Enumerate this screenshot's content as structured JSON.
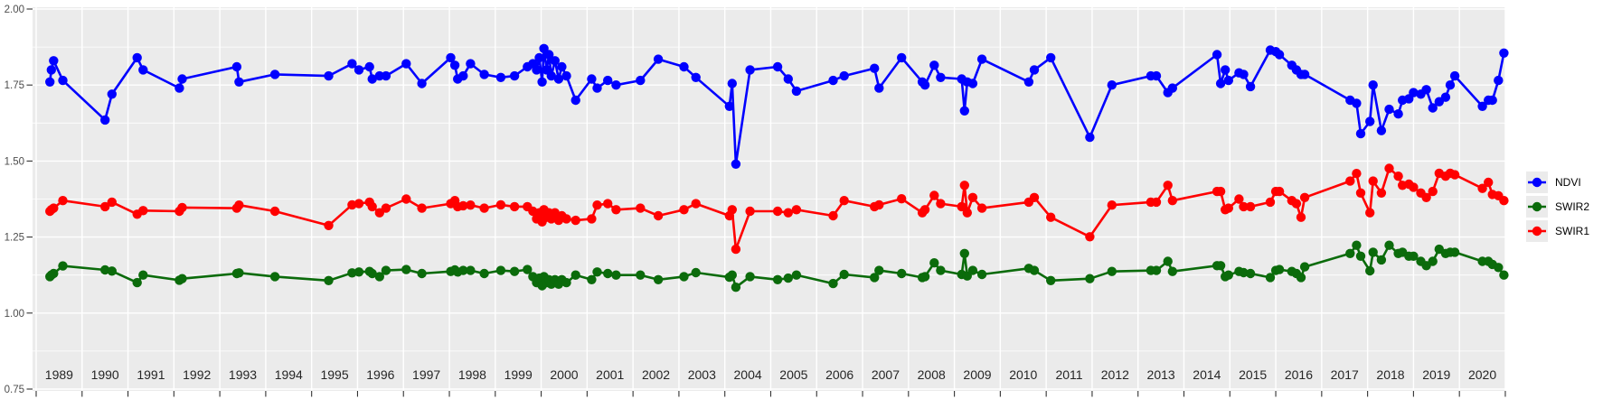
{
  "panel": {
    "bg_color": "#EBEBEB",
    "grid_color": "#FFFFFF",
    "tick_color": "#333333",
    "axis_text_color": "#4D4D4D",
    "year_text_color": "#262626"
  },
  "legend": {
    "position": "right",
    "items": [
      {
        "label": "NDVI",
        "color": "#0000FF"
      },
      {
        "label": "SWIR2",
        "color": "#0B6B0B"
      },
      {
        "label": "SWIR1",
        "color": "#FF0000"
      }
    ]
  },
  "chart_data": {
    "type": "line",
    "title": "",
    "xlabel": "",
    "ylabel": "",
    "x_range": [
      1989,
      2021
    ],
    "ylim": [
      0.75,
      2.0
    ],
    "y_tick_labels": [
      "0.75",
      "1.00",
      "1.25",
      "1.50",
      "1.75",
      "2.00"
    ],
    "y_ticks": [
      0.75,
      1.0,
      1.25,
      1.5,
      1.75,
      2.0
    ],
    "y_minor_ticks": [
      0.875,
      1.125,
      1.375,
      1.625,
      1.875
    ],
    "x_year_labels": [
      "1989",
      "1990",
      "1991",
      "1992",
      "1993",
      "1994",
      "1995",
      "1996",
      "1997",
      "1998",
      "1999",
      "2000",
      "2001",
      "2002",
      "2003",
      "2004",
      "2005",
      "2006",
      "2007",
      "2008",
      "2009",
      "2010",
      "2011",
      "2012",
      "2013",
      "2014",
      "2015",
      "2016",
      "2017",
      "2018",
      "2019",
      "2020"
    ],
    "grid": "horizontal major+minor, vertical major per year, white on grey panel",
    "legend_position": "right",
    "x": [
      1989.3,
      1989.33,
      1989.38,
      1989.58,
      1990.5,
      1990.65,
      1991.2,
      1991.33,
      1992.12,
      1992.18,
      1993.37,
      1993.42,
      1994.2,
      1995.37,
      1995.88,
      1996.03,
      1996.26,
      1996.32,
      1996.48,
      1996.62,
      1997.06,
      1997.4,
      1998.03,
      1998.12,
      1998.18,
      1998.3,
      1998.46,
      1998.76,
      1999.12,
      1999.42,
      1999.7,
      1999.82,
      1999.9,
      1999.96,
      2000.02,
      2000.06,
      2000.12,
      2000.17,
      2000.22,
      2000.3,
      2000.38,
      2000.45,
      2000.55,
      2000.75,
      2001.1,
      2001.22,
      2001.45,
      2001.63,
      2002.16,
      2002.55,
      2003.11,
      2003.37,
      2004.1,
      2004.16,
      2004.24,
      2004.55,
      2005.15,
      2005.38,
      2005.56,
      2006.36,
      2006.6,
      2007.26,
      2007.36,
      2007.85,
      2008.3,
      2008.36,
      2008.56,
      2008.7,
      2009.16,
      2009.22,
      2009.28,
      2009.4,
      2009.6,
      2010.62,
      2010.74,
      2011.1,
      2011.95,
      2012.43,
      2013.28,
      2013.4,
      2013.65,
      2013.75,
      2014.72,
      2014.8,
      2014.9,
      2014.97,
      2015.2,
      2015.3,
      2015.45,
      2015.88,
      2016.0,
      2016.08,
      2016.35,
      2016.45,
      2016.55,
      2016.63,
      2017.62,
      2017.76,
      2017.85,
      2018.05,
      2018.12,
      2018.3,
      2018.47,
      2018.67,
      2018.76,
      2018.9,
      2019.0,
      2019.16,
      2019.28,
      2019.42,
      2019.56,
      2019.7,
      2019.8,
      2019.9,
      2020.5,
      2020.63,
      2020.72,
      2020.85,
      2020.97
    ],
    "series": [
      {
        "name": "NDVI",
        "color": "#0000FF",
        "values": [
          1.76,
          1.8,
          1.83,
          1.765,
          1.635,
          1.72,
          1.84,
          1.8,
          1.74,
          1.77,
          1.81,
          1.76,
          1.785,
          1.78,
          1.82,
          1.8,
          1.81,
          1.77,
          1.78,
          1.78,
          1.82,
          1.755,
          1.84,
          1.815,
          1.77,
          1.78,
          1.82,
          1.785,
          1.775,
          1.78,
          1.81,
          1.82,
          1.8,
          1.84,
          1.76,
          1.87,
          1.8,
          1.85,
          1.78,
          1.83,
          1.77,
          1.81,
          1.78,
          1.7,
          1.77,
          1.74,
          1.765,
          1.75,
          1.765,
          1.835,
          1.81,
          1.775,
          1.68,
          1.755,
          1.49,
          1.8,
          1.81,
          1.77,
          1.73,
          1.765,
          1.78,
          1.805,
          1.74,
          1.84,
          1.76,
          1.75,
          1.815,
          1.775,
          1.77,
          1.665,
          1.76,
          1.755,
          1.835,
          1.76,
          1.8,
          1.84,
          1.578,
          1.75,
          1.78,
          1.78,
          1.725,
          1.74,
          1.85,
          1.755,
          1.8,
          1.765,
          1.79,
          1.785,
          1.745,
          1.865,
          1.86,
          1.85,
          1.815,
          1.8,
          1.785,
          1.785,
          1.7,
          1.69,
          1.59,
          1.63,
          1.75,
          1.6,
          1.67,
          1.655,
          1.7,
          1.705,
          1.725,
          1.72,
          1.735,
          1.675,
          1.695,
          1.71,
          1.75,
          1.78,
          1.68,
          1.7,
          1.7,
          1.765,
          1.855
        ]
      },
      {
        "name": "SWIR2",
        "color": "#0B6B0B",
        "values": [
          1.12,
          1.125,
          1.13,
          1.155,
          1.142,
          1.138,
          1.1,
          1.125,
          1.108,
          1.113,
          1.13,
          1.132,
          1.12,
          1.107,
          1.132,
          1.135,
          1.137,
          1.13,
          1.12,
          1.14,
          1.143,
          1.13,
          1.137,
          1.142,
          1.135,
          1.14,
          1.14,
          1.13,
          1.14,
          1.137,
          1.143,
          1.12,
          1.1,
          1.115,
          1.09,
          1.12,
          1.1,
          1.11,
          1.095,
          1.11,
          1.095,
          1.11,
          1.1,
          1.125,
          1.11,
          1.135,
          1.13,
          1.125,
          1.125,
          1.11,
          1.12,
          1.133,
          1.118,
          1.125,
          1.085,
          1.12,
          1.11,
          1.115,
          1.125,
          1.097,
          1.127,
          1.117,
          1.14,
          1.13,
          1.117,
          1.12,
          1.165,
          1.14,
          1.127,
          1.196,
          1.122,
          1.14,
          1.127,
          1.147,
          1.14,
          1.107,
          1.113,
          1.137,
          1.14,
          1.14,
          1.17,
          1.137,
          1.156,
          1.156,
          1.12,
          1.125,
          1.137,
          1.133,
          1.13,
          1.117,
          1.14,
          1.143,
          1.137,
          1.13,
          1.117,
          1.152,
          1.196,
          1.223,
          1.187,
          1.139,
          1.2,
          1.175,
          1.223,
          1.196,
          1.2,
          1.187,
          1.187,
          1.17,
          1.156,
          1.17,
          1.21,
          1.196,
          1.2,
          1.2,
          1.17,
          1.17,
          1.16,
          1.15,
          1.125
        ]
      },
      {
        "name": "SWIR1",
        "color": "#FF0000",
        "values": [
          1.335,
          1.34,
          1.345,
          1.37,
          1.35,
          1.365,
          1.325,
          1.337,
          1.335,
          1.347,
          1.345,
          1.355,
          1.335,
          1.288,
          1.356,
          1.36,
          1.365,
          1.35,
          1.33,
          1.345,
          1.375,
          1.345,
          1.36,
          1.37,
          1.35,
          1.353,
          1.355,
          1.345,
          1.356,
          1.35,
          1.35,
          1.335,
          1.31,
          1.33,
          1.3,
          1.34,
          1.315,
          1.33,
          1.31,
          1.33,
          1.305,
          1.32,
          1.31,
          1.305,
          1.31,
          1.355,
          1.36,
          1.34,
          1.345,
          1.32,
          1.34,
          1.36,
          1.32,
          1.34,
          1.21,
          1.335,
          1.335,
          1.33,
          1.34,
          1.32,
          1.37,
          1.35,
          1.356,
          1.376,
          1.33,
          1.34,
          1.387,
          1.36,
          1.35,
          1.42,
          1.33,
          1.38,
          1.345,
          1.365,
          1.38,
          1.315,
          1.251,
          1.355,
          1.365,
          1.365,
          1.42,
          1.37,
          1.4,
          1.4,
          1.34,
          1.345,
          1.375,
          1.35,
          1.35,
          1.365,
          1.4,
          1.4,
          1.37,
          1.36,
          1.315,
          1.38,
          1.434,
          1.459,
          1.395,
          1.33,
          1.434,
          1.395,
          1.476,
          1.45,
          1.42,
          1.424,
          1.414,
          1.395,
          1.38,
          1.4,
          1.46,
          1.45,
          1.46,
          1.455,
          1.41,
          1.43,
          1.39,
          1.386,
          1.37
        ]
      }
    ]
  }
}
